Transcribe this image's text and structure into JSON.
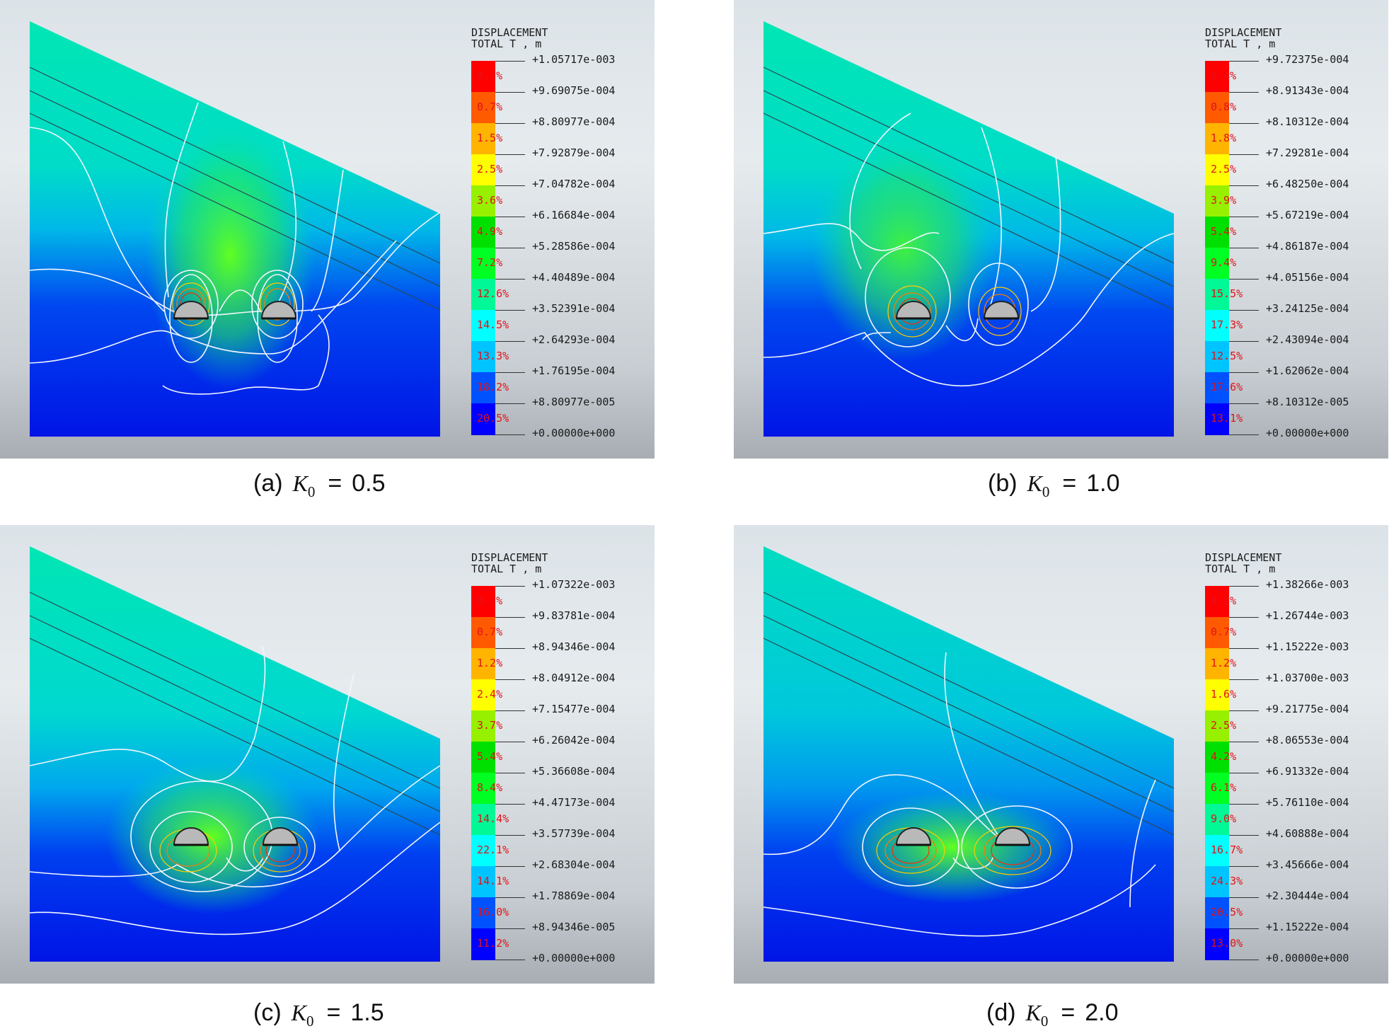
{
  "legend_title_line1": "DISPLACEMENT",
  "legend_title_line2": "TOTAL T , m",
  "colors": [
    "#ff0000",
    "#ff5a00",
    "#ffb400",
    "#ffff00",
    "#96f000",
    "#00e000",
    "#00ff22",
    "#00f896",
    "#00ffff",
    "#00c4ff",
    "#0052ff",
    "#0000ff"
  ],
  "panels": [
    {
      "caption_label": "(a)",
      "caption_symbol": "K",
      "caption_subscript": "0",
      "caption_equals": "=",
      "caption_value": "0.5",
      "legend_values": [
        "+1.05717e-003",
        "+9.69075e-004",
        "+8.80977e-004",
        "+7.92879e-004",
        "+7.04782e-004",
        "+6.16684e-004",
        "+5.28586e-004",
        "+4.40489e-004",
        "+3.52391e-004",
        "+2.64293e-004",
        "+1.76195e-004",
        "+8.80977e-005",
        "+0.00000e+000"
      ],
      "legend_percents": [
        "0.5%",
        "0.7%",
        "1.5%",
        "2.5%",
        "3.6%",
        "4.9%",
        "7.2%",
        "12.6%",
        "14.5%",
        "13.3%",
        "18.2%",
        "20.5%"
      ]
    },
    {
      "caption_label": "(b)",
      "caption_symbol": "K",
      "caption_subscript": "0",
      "caption_equals": "=",
      "caption_value": "1.0",
      "legend_values": [
        "+9.72375e-004",
        "+8.91343e-004",
        "+8.10312e-004",
        "+7.29281e-004",
        "+6.48250e-004",
        "+5.67219e-004",
        "+4.86187e-004",
        "+4.05156e-004",
        "+3.24125e-004",
        "+2.43094e-004",
        "+1.62062e-004",
        "+8.10312e-005",
        "+0.00000e+000"
      ],
      "legend_percents": [
        "0.4%",
        "0.8%",
        "1.8%",
        "2.5%",
        "3.9%",
        "5.4%",
        "9.4%",
        "15.5%",
        "17.3%",
        "12.5%",
        "17.6%",
        "13.1%"
      ]
    },
    {
      "caption_label": "(c)",
      "caption_symbol": "K",
      "caption_subscript": "0",
      "caption_equals": "=",
      "caption_value": "1.5",
      "legend_values": [
        "+1.07322e-003",
        "+9.83781e-004",
        "+8.94346e-004",
        "+8.04912e-004",
        "+7.15477e-004",
        "+6.26042e-004",
        "+5.36608e-004",
        "+4.47173e-004",
        "+3.57739e-004",
        "+2.68304e-004",
        "+1.78869e-004",
        "+8.94346e-005",
        "+0.00000e+000"
      ],
      "legend_percents": [
        "0.3%",
        "0.7%",
        "1.2%",
        "2.4%",
        "3.7%",
        "5.4%",
        "8.4%",
        "14.4%",
        "22.1%",
        "14.1%",
        "16.0%",
        "11.2%"
      ]
    },
    {
      "caption_label": "(d)",
      "caption_symbol": "K",
      "caption_subscript": "0",
      "caption_equals": "=",
      "caption_value": "2.0",
      "legend_values": [
        "+1.38266e-003",
        "+1.26744e-003",
        "+1.15222e-003",
        "+1.03700e-003",
        "+9.21775e-004",
        "+8.06553e-004",
        "+6.91332e-004",
        "+5.76110e-004",
        "+4.60888e-004",
        "+3.45666e-004",
        "+2.30444e-004",
        "+1.15222e-004",
        "+0.00000e+000"
      ],
      "legend_percents": [
        "0.3%",
        "0.7%",
        "1.2%",
        "1.6%",
        "2.5%",
        "4.2%",
        "6.1%",
        "9.0%",
        "16.7%",
        "24.3%",
        "20.5%",
        "13.0%"
      ]
    }
  ]
}
